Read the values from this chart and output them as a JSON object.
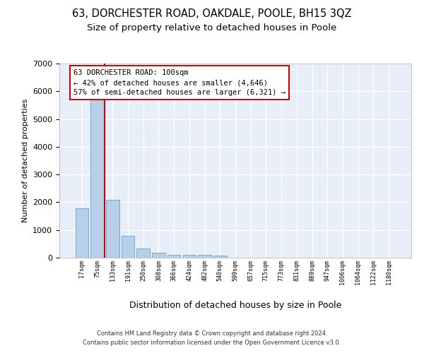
{
  "title1": "63, DORCHESTER ROAD, OAKDALE, POOLE, BH15 3QZ",
  "title2": "Size of property relative to detached houses in Poole",
  "xlabel": "Distribution of detached houses by size in Poole",
  "ylabel": "Number of detached properties",
  "categories": [
    "17sqm",
    "75sqm",
    "133sqm",
    "191sqm",
    "250sqm",
    "308sqm",
    "366sqm",
    "424sqm",
    "482sqm",
    "540sqm",
    "599sqm",
    "657sqm",
    "715sqm",
    "773sqm",
    "831sqm",
    "889sqm",
    "947sqm",
    "1006sqm",
    "1064sqm",
    "1122sqm",
    "1180sqm"
  ],
  "values": [
    1770,
    5750,
    2080,
    800,
    340,
    185,
    110,
    100,
    90,
    65,
    0,
    0,
    0,
    0,
    0,
    0,
    0,
    0,
    0,
    0,
    0
  ],
  "bar_color": "#b8cfe8",
  "bar_edge_color": "#6a9fcc",
  "red_line_color": "#cc0000",
  "bg_color": "#e8eef8",
  "grid_color": "#ffffff",
  "annotation_line1": "63 DORCHESTER ROAD: 100sqm",
  "annotation_line2": "← 42% of detached houses are smaller (4,646)",
  "annotation_line3": "57% of semi-detached houses are larger (6,321) →",
  "ylim_max": 7000,
  "yticks": [
    0,
    1000,
    2000,
    3000,
    4000,
    5000,
    6000,
    7000
  ],
  "footer1": "Contains HM Land Registry data © Crown copyright and database right 2024.",
  "footer2": "Contains public sector information licensed under the Open Government Licence v3.0.",
  "title1_fontsize": 10.5,
  "title2_fontsize": 9.5,
  "ylabel_fontsize": 8,
  "xlabel_fontsize": 9,
  "ytick_fontsize": 8,
  "xtick_fontsize": 6,
  "annot_fontsize": 7.5,
  "footer_fontsize": 6
}
